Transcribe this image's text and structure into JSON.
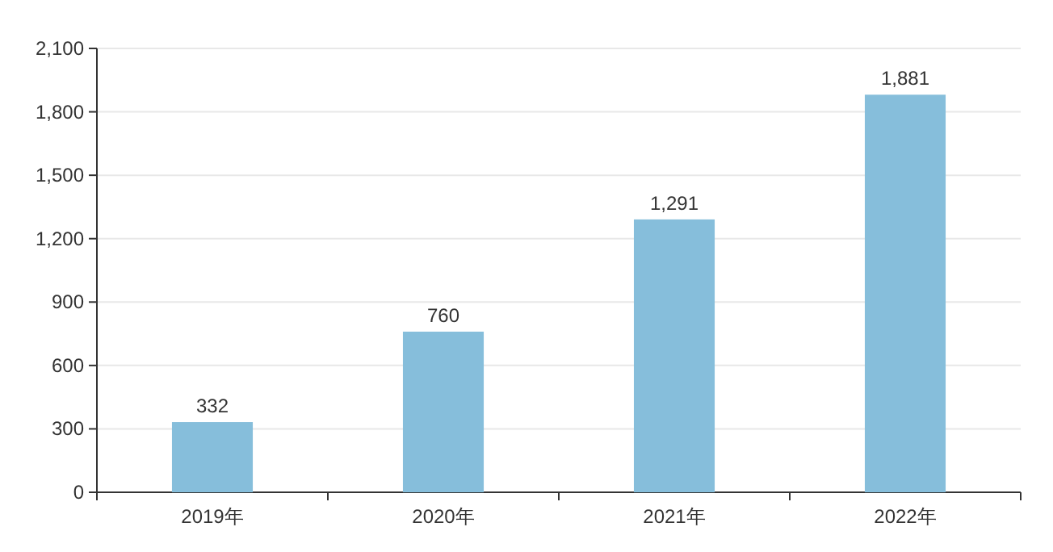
{
  "chart_data": {
    "type": "bar",
    "categories": [
      "2019年",
      "2020年",
      "2021年",
      "2022年"
    ],
    "values": [
      332,
      760,
      1291,
      1881
    ],
    "value_labels": [
      "332",
      "760",
      "1,291",
      "1,881"
    ],
    "color": "#86bedb",
    "ylim": [
      0,
      2100
    ],
    "yticks": [
      0,
      300,
      600,
      900,
      {
        "value": 1200,
        "label": "1,200"
      },
      {
        "value": 1500,
        "label": "1,500"
      },
      {
        "value": 1800,
        "label": "1,800"
      },
      {
        "value": 2100,
        "label": "2,100"
      }
    ],
    "grid": "y"
  }
}
